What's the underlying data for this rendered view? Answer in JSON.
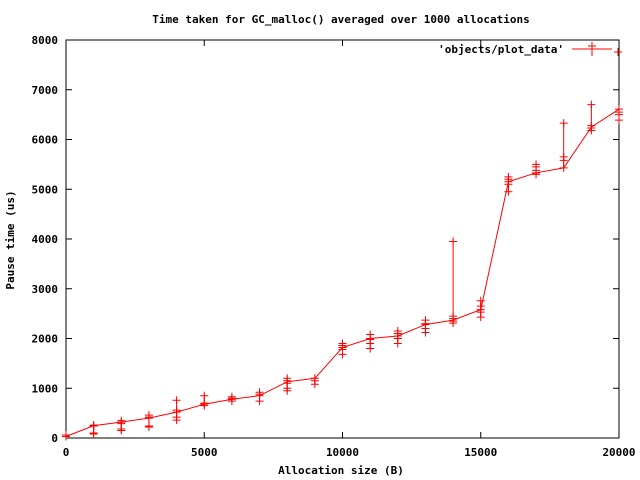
{
  "chart_data": {
    "type": "line",
    "title": "Time taken for GC_malloc() averaged over 1000 allocations",
    "xlabel": "Allocation size (B)",
    "ylabel": "Pause time (us)",
    "xlim": [
      0,
      20000
    ],
    "ylim": [
      0,
      8000
    ],
    "xticks": [
      0,
      5000,
      10000,
      15000,
      20000
    ],
    "yticks": [
      0,
      1000,
      2000,
      3000,
      4000,
      5000,
      6000,
      7000,
      8000
    ],
    "grid": false,
    "legend_position": "top-right",
    "colors": {
      "series": "#ff0000",
      "axes": "#000000"
    },
    "series": [
      {
        "name": "'objects/plot_data'",
        "x": [
          0,
          1000,
          2000,
          3000,
          4000,
          5000,
          6000,
          7000,
          8000,
          9000,
          10000,
          11000,
          12000,
          13000,
          14000,
          15000,
          16000,
          17000,
          18000,
          19000,
          20000
        ],
        "y": [
          30,
          250,
          320,
          400,
          520,
          680,
          780,
          850,
          1130,
          1200,
          1820,
          2000,
          2050,
          2280,
          2370,
          2580,
          5150,
          5330,
          5430,
          6250,
          6610
        ]
      }
    ],
    "samples": [
      {
        "x": 0,
        "y": [
          30,
          60
        ]
      },
      {
        "x": 1000,
        "y": [
          80,
          100,
          240,
          250,
          260
        ]
      },
      {
        "x": 2000,
        "y": [
          150,
          180,
          290,
          320,
          350
        ]
      },
      {
        "x": 3000,
        "y": [
          220,
          240,
          400,
          420,
          460
        ]
      },
      {
        "x": 4000,
        "y": [
          360,
          420,
          520,
          560,
          760
        ]
      },
      {
        "x": 5000,
        "y": [
          650,
          680,
          700,
          850
        ]
      },
      {
        "x": 6000,
        "y": [
          740,
          780,
          800,
          830
        ]
      },
      {
        "x": 7000,
        "y": [
          740,
          850,
          880,
          920
        ]
      },
      {
        "x": 8000,
        "y": [
          950,
          1000,
          1100,
          1150,
          1200
        ]
      },
      {
        "x": 9000,
        "y": [
          1080,
          1150,
          1200
        ]
      },
      {
        "x": 10000,
        "y": [
          1680,
          1780,
          1820,
          1860,
          1900
        ]
      },
      {
        "x": 11000,
        "y": [
          1800,
          1900,
          1980,
          2000,
          2080
        ]
      },
      {
        "x": 12000,
        "y": [
          1900,
          2000,
          2050,
          2100,
          2150
        ]
      },
      {
        "x": 13000,
        "y": [
          2120,
          2200,
          2280,
          2300,
          2370
        ]
      },
      {
        "x": 14000,
        "y": [
          2310,
          2350,
          2400,
          2450,
          3950
        ]
      },
      {
        "x": 15000,
        "y": [
          2430,
          2530,
          2580,
          2650,
          2760
        ]
      },
      {
        "x": 16000,
        "y": [
          4950,
          5100,
          5150,
          5200,
          5250
        ]
      },
      {
        "x": 17000,
        "y": [
          5300,
          5330,
          5380,
          5450,
          5500
        ]
      },
      {
        "x": 18000,
        "y": [
          5430,
          5580,
          5650,
          6330
        ]
      },
      {
        "x": 19000,
        "y": [
          6180,
          6230,
          6280,
          6700
        ]
      },
      {
        "x": 20000,
        "y": [
          6390,
          6500,
          6550,
          6610
        ]
      }
    ]
  }
}
